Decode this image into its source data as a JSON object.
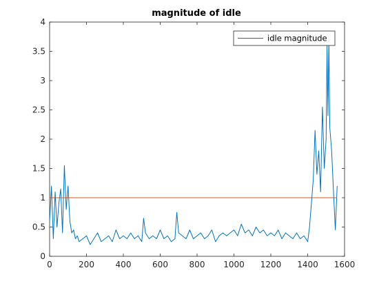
{
  "chart_data": {
    "type": "line",
    "title": "magnitude of idle",
    "xlabel": "",
    "ylabel": "",
    "xlim": [
      0,
      1600
    ],
    "ylim": [
      0,
      4
    ],
    "x_ticks": [
      0,
      200,
      400,
      600,
      800,
      1000,
      1200,
      1400,
      1600
    ],
    "y_ticks": [
      0,
      0.5,
      1,
      1.5,
      2,
      2.5,
      3,
      3.5,
      4
    ],
    "x_tick_labels": [
      "0",
      "200",
      "400",
      "600",
      "800",
      "1000",
      "1200",
      "1400",
      "1600"
    ],
    "y_tick_labels": [
      "0",
      "0.5",
      "1",
      "1.5",
      "2",
      "2.5",
      "3",
      "3.5",
      "4"
    ],
    "grid": false,
    "legend_position": "top-right",
    "series": [
      {
        "name": "idle magnitude",
        "color": "#0072BD",
        "x": [
          0,
          10,
          20,
          30,
          40,
          50,
          60,
          70,
          80,
          90,
          100,
          110,
          120,
          130,
          140,
          150,
          160,
          180,
          200,
          220,
          240,
          260,
          280,
          300,
          320,
          340,
          360,
          380,
          400,
          420,
          440,
          460,
          480,
          500,
          510,
          520,
          540,
          560,
          580,
          600,
          620,
          640,
          660,
          680,
          690,
          700,
          720,
          740,
          760,
          780,
          800,
          820,
          840,
          860,
          880,
          900,
          920,
          940,
          960,
          980,
          1000,
          1020,
          1040,
          1060,
          1080,
          1100,
          1120,
          1140,
          1160,
          1180,
          1200,
          1220,
          1240,
          1260,
          1280,
          1300,
          1320,
          1340,
          1360,
          1380,
          1400,
          1410,
          1420,
          1430,
          1440,
          1450,
          1460,
          1470,
          1480,
          1490,
          1500,
          1505,
          1510,
          1515,
          1520,
          1530,
          1540,
          1550,
          1560
        ],
        "values": [
          0.6,
          1.2,
          0.3,
          1.1,
          0.5,
          0.9,
          1.15,
          0.4,
          1.55,
          0.8,
          1.2,
          0.6,
          0.4,
          0.45,
          0.3,
          0.35,
          0.25,
          0.3,
          0.35,
          0.2,
          0.3,
          0.4,
          0.25,
          0.3,
          0.35,
          0.25,
          0.45,
          0.3,
          0.35,
          0.3,
          0.4,
          0.3,
          0.35,
          0.25,
          0.65,
          0.4,
          0.3,
          0.35,
          0.3,
          0.45,
          0.3,
          0.35,
          0.25,
          0.3,
          0.75,
          0.4,
          0.35,
          0.3,
          0.45,
          0.3,
          0.35,
          0.4,
          0.3,
          0.35,
          0.45,
          0.25,
          0.35,
          0.4,
          0.35,
          0.4,
          0.45,
          0.35,
          0.55,
          0.4,
          0.45,
          0.35,
          0.5,
          0.4,
          0.45,
          0.35,
          0.4,
          0.35,
          0.45,
          0.3,
          0.4,
          0.35,
          0.3,
          0.4,
          0.3,
          0.35,
          0.25,
          0.5,
          0.9,
          1.3,
          2.15,
          1.4,
          1.8,
          1.1,
          2.55,
          1.5,
          2.0,
          3.6,
          2.4,
          3.7,
          2.2,
          1.8,
          1.1,
          0.45,
          1.2
        ]
      },
      {
        "name": "",
        "color": "#D95319",
        "x": [
          0,
          1560
        ],
        "values": [
          1,
          1
        ]
      }
    ]
  }
}
